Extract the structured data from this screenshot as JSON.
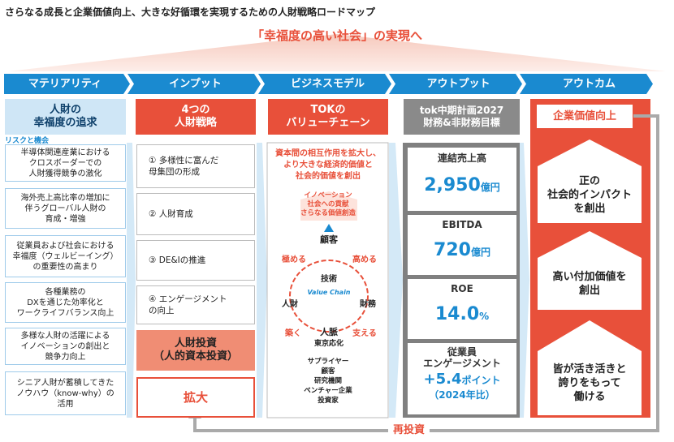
{
  "title": "さらなる成長と企業価値向上、大きな好循環を実現するための人財戦略ロードマップ",
  "headline": "「幸福度の高い社会」の実現へ",
  "headers": [
    "マテリアリティ",
    "インプット",
    "ビジネスモデル",
    "アウトプット",
    "アウトカム"
  ],
  "materiality": {
    "heading": "人財の\n幸福度の追求",
    "label": "リスクと機会",
    "items": [
      "半導体関連産業における\nクロスボーダーでの\n人財獲得競争の激化",
      "海外売上高比率の増加に\n伴うグローバル人財の\n育成・増強",
      "従業員および社会における\n幸福度（ウェルビーイング）\nの重要性の高まり",
      "各種業務の\nDXを通じた効率化と\nワークライフバランス向上",
      "多様な人財の活躍による\nイノベーションの創出と\n競争力向上",
      "シニア人財が蓄積してきた\nノウハウ（know-why）の\n活用"
    ]
  },
  "input": {
    "heading": "4つの\n人財戦略",
    "items": [
      "① 多様性に富んだ\n母集団の形成",
      "② 人財育成",
      "③ DE&Iの推進",
      "④ エンゲージメント\nの向上"
    ],
    "investment": "人財投資\n（人的資本投資）",
    "expand": "拡大"
  },
  "business_model": {
    "heading": "TOKの\nバリューチェーン",
    "description": "資本間の相互作用を拡大し、\nより大きな経済的価値と\n社会的価値を創出",
    "goal": "イノベーション\n社会への貢献\nさらなる価値創造",
    "center": "Value Chain",
    "nodes": [
      "顧客",
      "技術",
      "財務",
      "人財",
      "人脈",
      "東京応化"
    ],
    "actions": [
      "極める",
      "高める",
      "支える",
      "築く"
    ],
    "partners": [
      "サプライヤー",
      "顧客",
      "研究機関",
      "ベンチャー企業",
      "投資家"
    ]
  },
  "output": {
    "heading": "tok中期計画2027\n財務&非財務目標",
    "metrics": [
      {
        "label": "連結売上高",
        "value": "2,950",
        "unit": "億円"
      },
      {
        "label": "EBITDA",
        "value": "720",
        "unit": "億円"
      },
      {
        "label": "ROE",
        "value": "14.0",
        "unit": "%"
      },
      {
        "label": "従業員\nエンゲージメント",
        "value": "+5.4",
        "unit": "ポイント",
        "note": "（2024年比）"
      }
    ]
  },
  "outcome": {
    "top": "企業価値向上",
    "steps": [
      "正の\n社会的インパクト\nを創出",
      "高い付加価値を\n創出",
      "皆が活き活きと\n誇りをもって\n働ける"
    ]
  },
  "reinvest": "再投資"
}
